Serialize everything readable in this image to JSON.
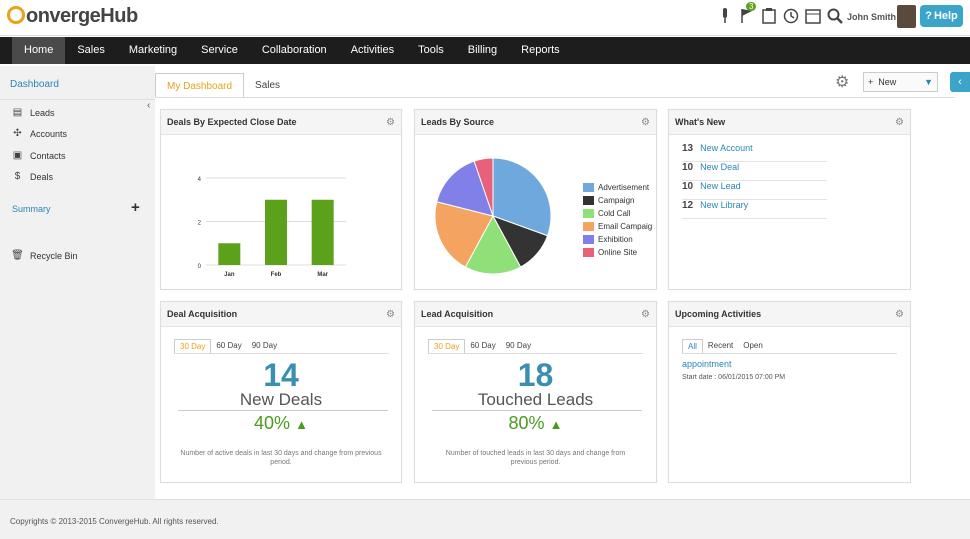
{
  "app": {
    "logo_c": "C",
    "logo_rest": "onvergeHub",
    "user": "John Smith",
    "help": "Help",
    "notif_count": "3"
  },
  "nav": [
    "Home",
    "Sales",
    "Marketing",
    "Service",
    "Collaboration",
    "Activities",
    "Tools",
    "Billing",
    "Reports"
  ],
  "sidebar": {
    "dashboard": "Dashboard",
    "items": [
      "Leads",
      "Accounts",
      "Contacts",
      "Deals"
    ],
    "summary": "Summary",
    "recycle": "Recycle Bin"
  },
  "tabs": [
    "My Dashboard",
    "Sales"
  ],
  "new_label": "New",
  "panels": {
    "deals_by_close": "Deals By Expected Close Date",
    "leads_by_source": "Leads By Source",
    "whats_new": "What's New",
    "deal_acq": "Deal Acquisition",
    "lead_acq": "Lead Acquisition",
    "upcoming": "Upcoming Activities"
  },
  "whats_new": [
    {
      "num": "13",
      "label": "New Account"
    },
    {
      "num": "10",
      "label": "New Deal"
    },
    {
      "num": "10",
      "label": "New Lead"
    },
    {
      "num": "12",
      "label": "New Library"
    }
  ],
  "deal_acq": {
    "tabs": [
      "30 Day",
      "60 Day",
      "90 Day"
    ],
    "value": "14",
    "label": "New Deals",
    "pct": "40%",
    "desc": "Number of active deals in last 30 days and change from previous period."
  },
  "lead_acq": {
    "tabs": [
      "30 Day",
      "60 Day",
      "90 Day"
    ],
    "value": "18",
    "label": "Touched Leads",
    "pct": "80%",
    "desc": "Number of touched leads in last 30 days and change from previous period."
  },
  "upcoming": {
    "tabs": [
      "All",
      "Recent",
      "Open"
    ],
    "title": "appointment",
    "date": "Start date : 06/01/2015  07:00 PM"
  },
  "footer": "Copyrights © 2013-2015 ConvergeHub. All rights reserved.",
  "chart_data": [
    {
      "type": "bar",
      "title": "Deals By Expected Close Date",
      "categories": [
        "Jan",
        "Feb",
        "Mar"
      ],
      "values": [
        1,
        3,
        3
      ],
      "ylim": [
        0,
        4
      ],
      "yticks": [
        "0",
        "2",
        "4"
      ],
      "color": "#5ca11c"
    },
    {
      "type": "pie",
      "title": "Leads By Source",
      "labels": [
        "Advertisement",
        "Campaign",
        "Cold Call",
        "Email Campaig",
        "Exhibition",
        "Online Site"
      ],
      "values": [
        29,
        11,
        15,
        20,
        15,
        5
      ],
      "colors": [
        "#6fa8dc",
        "#333333",
        "#90e07a",
        "#f4a460",
        "#8080e8",
        "#e8607a"
      ]
    }
  ]
}
